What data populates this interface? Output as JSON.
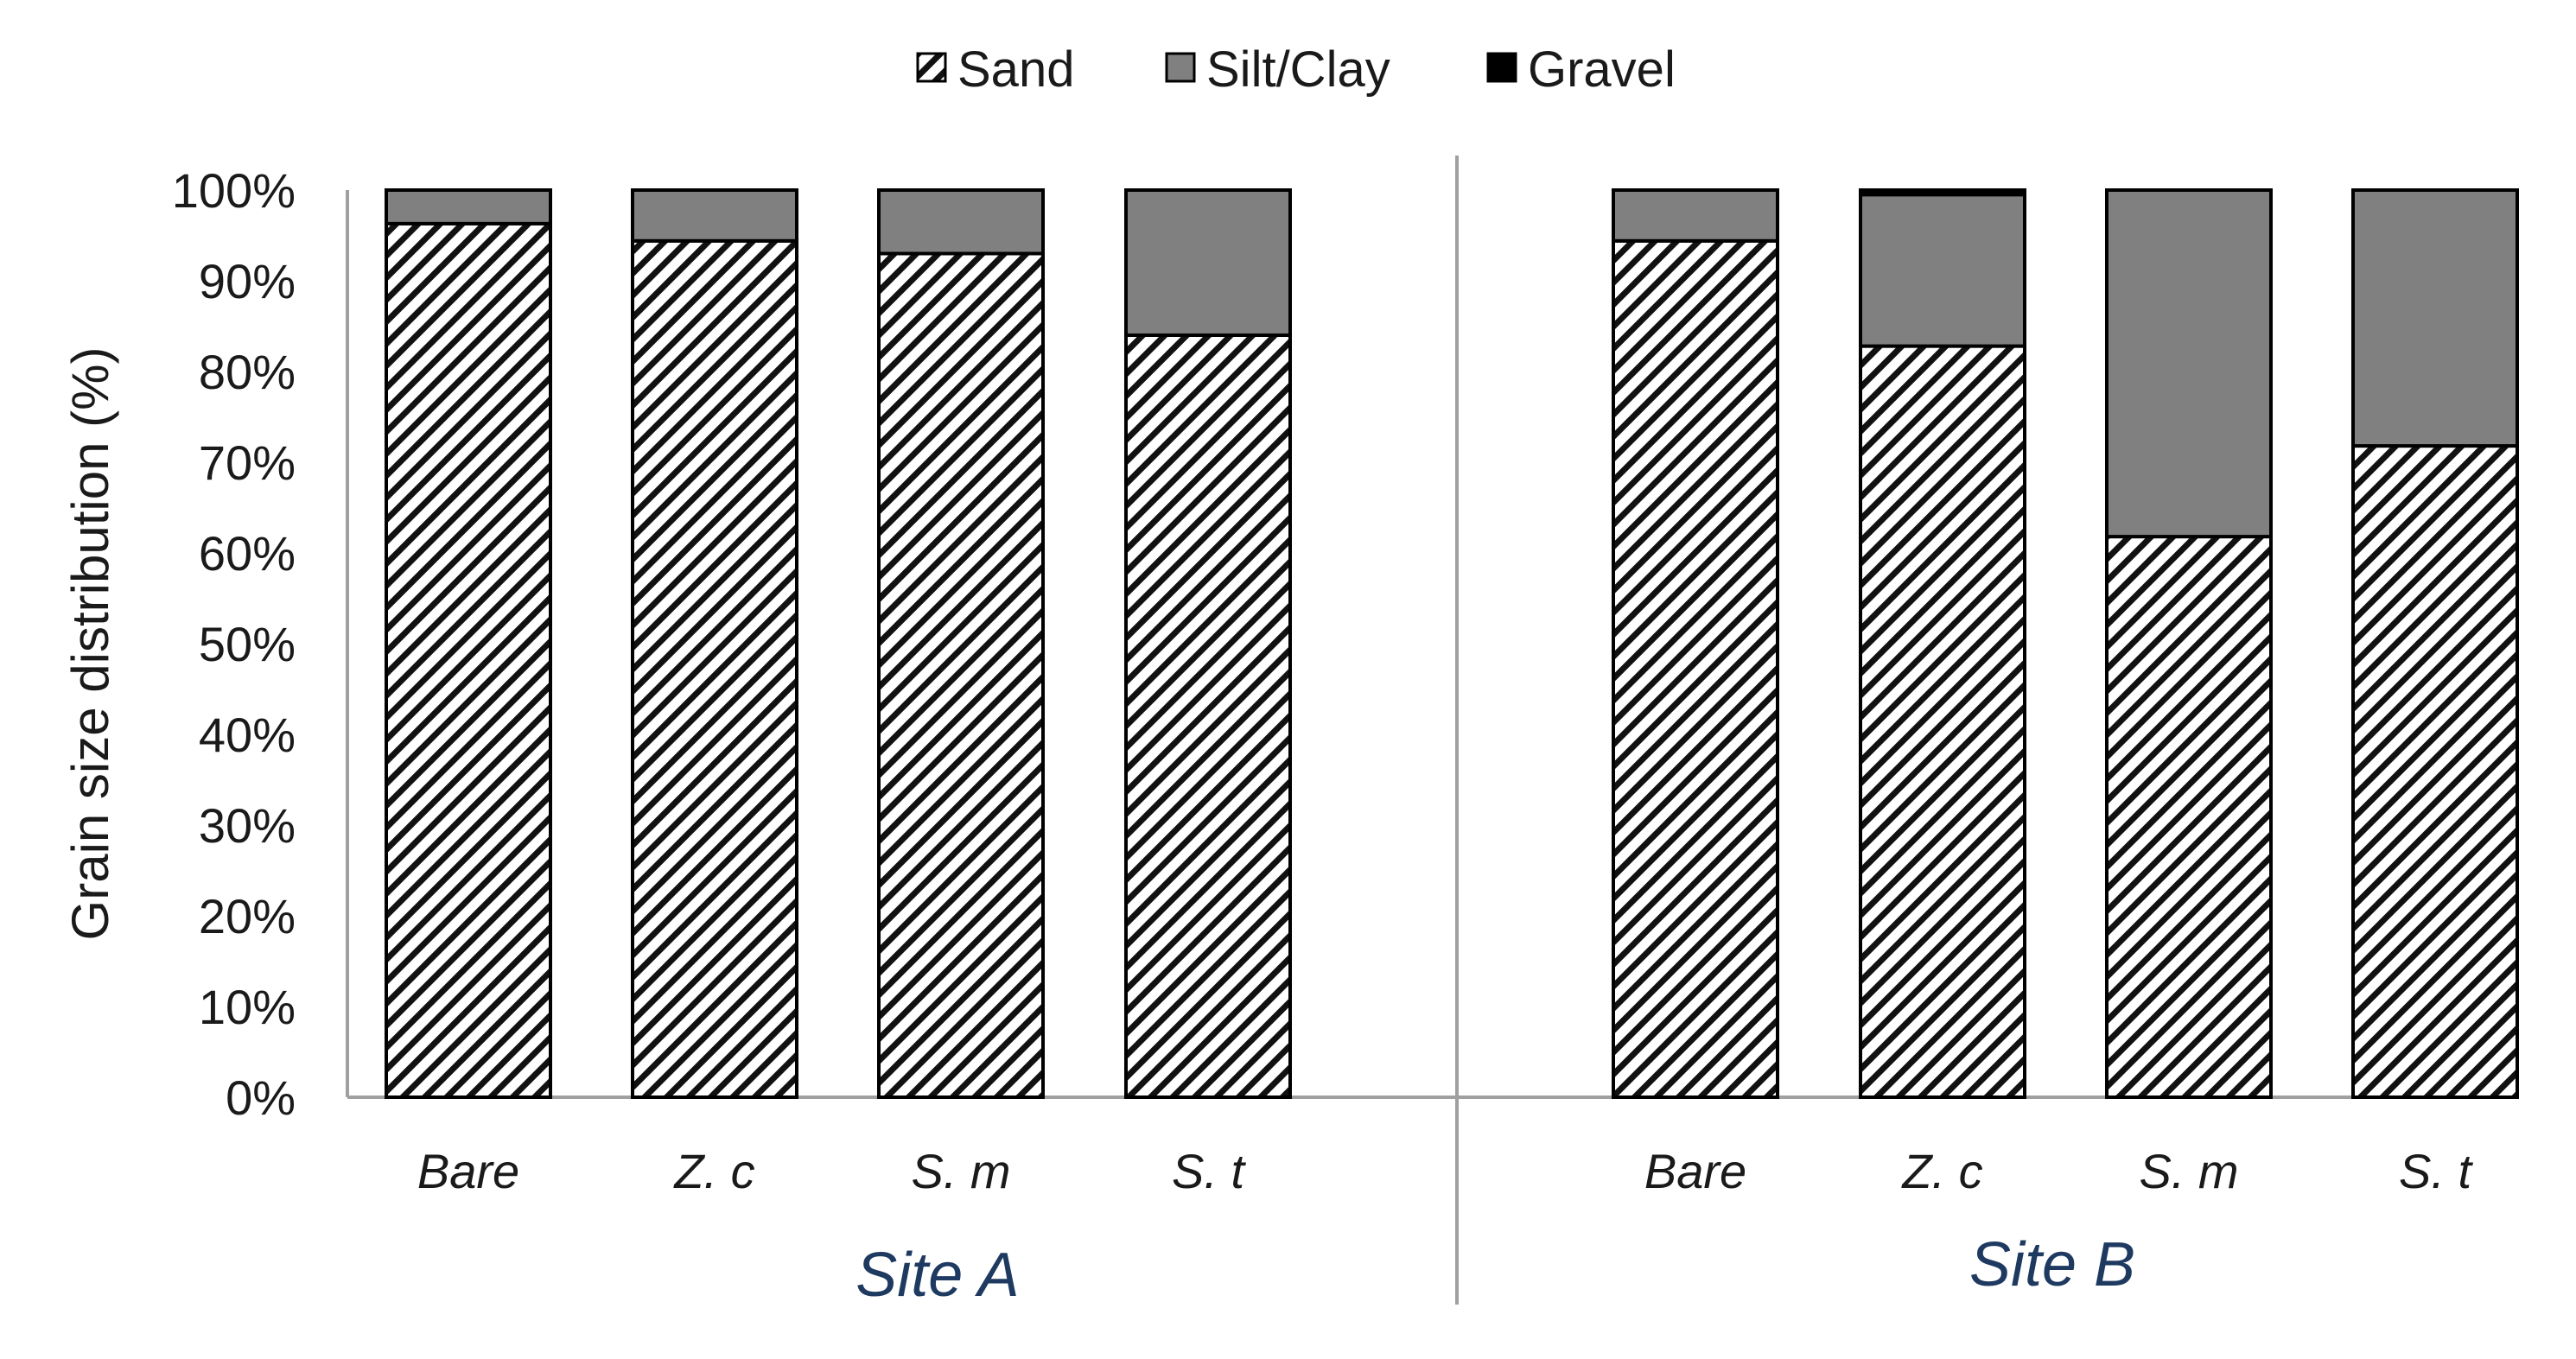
{
  "chart_data": {
    "type": "bar",
    "stacked": true,
    "percent": true,
    "ylabel": "Grain size distribution (%)",
    "ylim": [
      0,
      100
    ],
    "yticks": [
      "0%",
      "10%",
      "20%",
      "30%",
      "40%",
      "50%",
      "60%",
      "70%",
      "80%",
      "90%",
      "100%"
    ],
    "groups": [
      {
        "name": "Site A",
        "categories": [
          "Bare",
          "Z. c",
          "S. m",
          "S. t"
        ]
      },
      {
        "name": "Site B",
        "categories": [
          "Bare",
          "Z. c",
          "S. m",
          "S. t"
        ]
      }
    ],
    "series": [
      {
        "name": "Sand",
        "pattern": "diagonal-hatch",
        "values": [
          96.3,
          94.4,
          93.0,
          84.0,
          94.4,
          82.8,
          61.8,
          71.8
        ]
      },
      {
        "name": "Silt/Clay",
        "color": "#808080",
        "values": [
          3.7,
          5.6,
          7.0,
          16.0,
          5.6,
          16.7,
          38.2,
          28.2
        ]
      },
      {
        "name": "Gravel",
        "color": "#000000",
        "values": [
          0,
          0,
          0,
          0,
          0,
          0.5,
          0,
          0
        ]
      }
    ],
    "legend_position": "top-center",
    "grid": false
  }
}
